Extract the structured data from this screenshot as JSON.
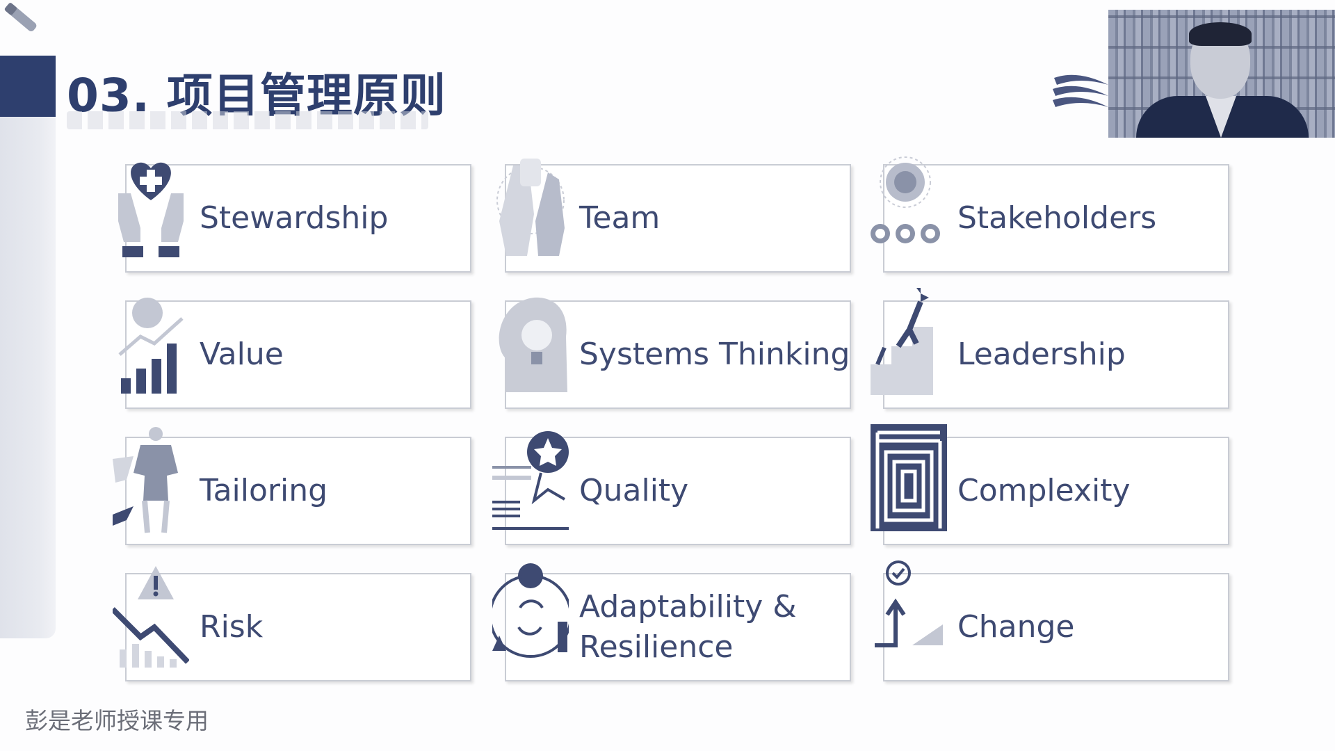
{
  "slide": {
    "title": "03. 项目管理原则",
    "footer": "彭是老师授课专用"
  },
  "colors": {
    "primary": "#2e3f6e",
    "card_text": "#3e4a72",
    "card_border": "#c9ccd4",
    "strip": "#e3e6ed"
  },
  "principles": [
    {
      "label": "Stewardship",
      "icon": "heart-hands-icon"
    },
    {
      "label": "Team",
      "icon": "team-hands-icon"
    },
    {
      "label": "Stakeholders",
      "icon": "stakeholders-icon"
    },
    {
      "label": "Value",
      "icon": "value-bar-chart-icon"
    },
    {
      "label": "Systems Thinking",
      "icon": "head-lightbulb-icon"
    },
    {
      "label": "Leadership",
      "icon": "leader-steps-icon"
    },
    {
      "label": "Tailoring",
      "icon": "tailoring-mannequin-icon"
    },
    {
      "label": "Quality",
      "icon": "quality-star-icon"
    },
    {
      "label": "Complexity",
      "icon": "maze-icon"
    },
    {
      "label": "Risk",
      "icon": "risk-warning-icon"
    },
    {
      "label": "Adaptability & Resilience",
      "icon": "adaptability-cycle-icon"
    },
    {
      "label": "Change",
      "icon": "change-arrow-icon"
    }
  ]
}
